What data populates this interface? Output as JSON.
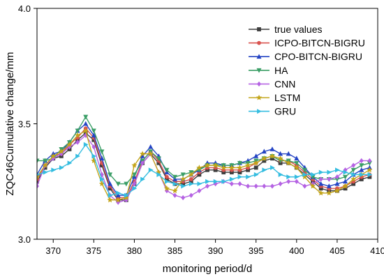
{
  "chart_data": {
    "type": "line",
    "title": "",
    "xlabel": "monitoring period/d",
    "ylabel": "ZQC46Cumulative change/mm",
    "xlim": [
      368,
      410
    ],
    "ylim": [
      3.0,
      4.0
    ],
    "x_ticks": [
      370,
      375,
      380,
      385,
      390,
      395,
      400,
      405,
      410
    ],
    "y_ticks": [
      3.0,
      3.5,
      4.0
    ],
    "y_tick_labels": [
      "3.0",
      "3.5",
      "4.0"
    ],
    "grid": false,
    "legend_position": "top-right",
    "x": [
      368,
      369,
      370,
      371,
      372,
      373,
      374,
      375,
      376,
      377,
      378,
      379,
      380,
      381,
      382,
      383,
      384,
      385,
      386,
      387,
      388,
      389,
      390,
      391,
      392,
      393,
      394,
      395,
      396,
      397,
      398,
      399,
      400,
      401,
      402,
      403,
      404,
      405,
      406,
      407,
      408,
      409
    ],
    "series": [
      {
        "name": "true values",
        "color": "#3d3d3d",
        "marker": "square",
        "values": [
          3.25,
          3.31,
          3.35,
          3.36,
          3.39,
          3.43,
          3.46,
          3.43,
          3.32,
          3.22,
          3.17,
          3.17,
          3.24,
          3.33,
          3.37,
          3.33,
          3.26,
          3.24,
          3.24,
          3.25,
          3.28,
          3.3,
          3.3,
          3.29,
          3.29,
          3.29,
          3.3,
          3.31,
          3.34,
          3.35,
          3.33,
          3.33,
          3.31,
          3.28,
          3.25,
          3.22,
          3.21,
          3.21,
          3.22,
          3.24,
          3.26,
          3.27
        ]
      },
      {
        "name": "ICPO-BITCN-BIGRU",
        "color": "#d9534f",
        "marker": "circle",
        "values": [
          3.26,
          3.32,
          3.36,
          3.37,
          3.41,
          3.44,
          3.48,
          3.44,
          3.33,
          3.23,
          3.18,
          3.18,
          3.25,
          3.34,
          3.38,
          3.34,
          3.27,
          3.25,
          3.25,
          3.26,
          3.29,
          3.31,
          3.31,
          3.3,
          3.3,
          3.3,
          3.31,
          3.33,
          3.35,
          3.36,
          3.34,
          3.34,
          3.32,
          3.29,
          3.26,
          3.23,
          3.22,
          3.22,
          3.23,
          3.25,
          3.27,
          3.28
        ]
      },
      {
        "name": "CPO-BITCN-BIGRU",
        "color": "#2444c4",
        "marker": "triangle-up",
        "values": [
          3.28,
          3.34,
          3.37,
          3.38,
          3.42,
          3.47,
          3.5,
          3.45,
          3.35,
          3.24,
          3.19,
          3.19,
          3.27,
          3.36,
          3.4,
          3.36,
          3.29,
          3.26,
          3.26,
          3.28,
          3.3,
          3.33,
          3.33,
          3.32,
          3.32,
          3.33,
          3.34,
          3.36,
          3.38,
          3.39,
          3.37,
          3.37,
          3.35,
          3.31,
          3.27,
          3.24,
          3.23,
          3.24,
          3.25,
          3.28,
          3.3,
          3.31
        ]
      },
      {
        "name": "HA",
        "color": "#3a9e66",
        "marker": "triangle-down",
        "values": [
          3.34,
          3.34,
          3.35,
          3.39,
          3.42,
          3.47,
          3.53,
          3.47,
          3.38,
          3.28,
          3.24,
          3.24,
          3.28,
          3.34,
          3.38,
          3.35,
          3.3,
          3.27,
          3.28,
          3.29,
          3.3,
          3.32,
          3.32,
          3.32,
          3.32,
          3.33,
          3.33,
          3.34,
          3.35,
          3.36,
          3.34,
          3.34,
          3.33,
          3.3,
          3.27,
          3.26,
          3.26,
          3.26,
          3.27,
          3.3,
          3.32,
          3.33
        ]
      },
      {
        "name": "CNN",
        "color": "#b563e3",
        "marker": "diamond",
        "values": [
          3.23,
          3.32,
          3.35,
          3.37,
          3.4,
          3.42,
          3.45,
          3.4,
          3.28,
          3.19,
          3.16,
          3.17,
          3.24,
          3.33,
          3.37,
          3.29,
          3.21,
          3.19,
          3.18,
          3.19,
          3.21,
          3.23,
          3.24,
          3.25,
          3.24,
          3.24,
          3.23,
          3.23,
          3.23,
          3.23,
          3.24,
          3.25,
          3.25,
          3.23,
          3.24,
          3.26,
          3.26,
          3.27,
          3.3,
          3.32,
          3.34,
          3.34
        ]
      },
      {
        "name": "LSTM",
        "color": "#c3a51a",
        "marker": "star",
        "values": [
          3.27,
          3.32,
          3.36,
          3.38,
          3.41,
          3.45,
          3.47,
          3.34,
          3.24,
          3.17,
          3.17,
          3.18,
          3.32,
          3.37,
          3.37,
          3.29,
          3.22,
          3.21,
          3.26,
          3.28,
          3.31,
          3.32,
          3.32,
          3.31,
          3.31,
          3.31,
          3.32,
          3.33,
          3.35,
          3.36,
          3.35,
          3.33,
          3.31,
          3.27,
          3.23,
          3.2,
          3.2,
          3.21,
          3.23,
          3.26,
          3.28,
          3.3
        ]
      },
      {
        "name": "GRU",
        "color": "#35bde0",
        "marker": "triangle-right",
        "values": [
          3.28,
          3.29,
          3.3,
          3.31,
          3.33,
          3.36,
          3.41,
          3.36,
          3.26,
          3.19,
          3.2,
          3.19,
          3.22,
          3.26,
          3.3,
          3.28,
          3.25,
          3.24,
          3.23,
          3.24,
          3.24,
          3.25,
          3.25,
          3.25,
          3.26,
          3.27,
          3.27,
          3.28,
          3.3,
          3.31,
          3.28,
          3.27,
          3.27,
          3.28,
          3.28,
          3.29,
          3.29,
          3.3,
          3.29,
          3.28,
          3.28,
          3.28
        ]
      }
    ]
  }
}
